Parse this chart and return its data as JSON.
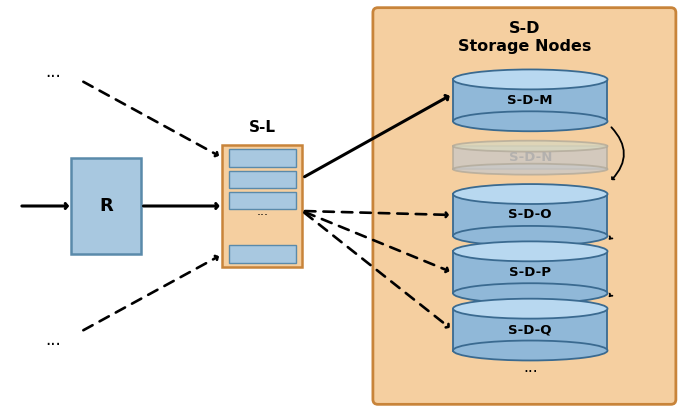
{
  "bg_color": "#ffffff",
  "orange_box_color": "#f5cfa0",
  "orange_box_border": "#c8843a",
  "router_box_color": "#a8c8e0",
  "router_box_border": "#5a8aaa",
  "sl_box_color": "#f5cfa0",
  "sl_box_border": "#c8843a",
  "sl_shelf_color": "#a8c8e0",
  "sl_shelf_border": "#5a8aaa",
  "disk_top_color": "#b8d8f0",
  "disk_body_color": "#90b8d8",
  "disk_border_color": "#3a6a90",
  "disk_faded_body": "#c8c8c8",
  "disk_faded_top": "#d8d8c0",
  "disk_faded_border": "#b0a898",
  "disk_faded_label": "#aaaaaa",
  "title": "S-D\nStorage Nodes",
  "router_label": "R",
  "sl_label": "S-L",
  "nodes": [
    "S-D-M",
    "S-D-N",
    "S-D-O",
    "S-D-P",
    "S-D-Q"
  ],
  "node_faded": [
    false,
    true,
    false,
    false,
    false
  ]
}
